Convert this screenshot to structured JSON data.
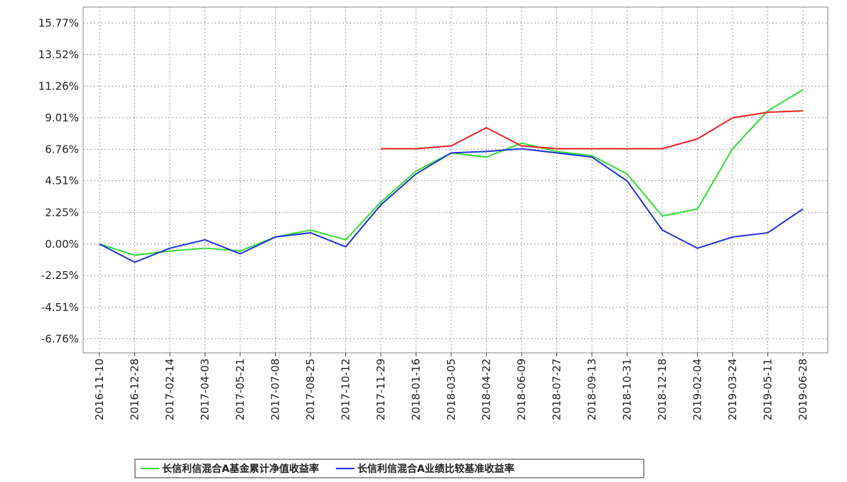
{
  "chart_data": {
    "type": "line",
    "categories": [
      "2016-11-10",
      "2016-12-28",
      "2017-02-14",
      "2017-04-03",
      "2017-05-21",
      "2017-07-08",
      "2017-08-25",
      "2017-10-12",
      "2017-11-29",
      "2018-01-16",
      "2018-03-05",
      "2018-04-22",
      "2018-06-09",
      "2018-07-27",
      "2018-09-13",
      "2018-10-31",
      "2018-12-18",
      "2019-02-04",
      "2019-03-24",
      "2019-05-11",
      "2019-06-28"
    ],
    "series": [
      {
        "name": "长信利信混合A基金累计净值收益率",
        "color": "#33dd33",
        "values": [
          0,
          -0.8,
          -0.5,
          -0.3,
          -0.5,
          0.5,
          1.0,
          0.3,
          3.0,
          5.2,
          6.5,
          6.2,
          7.2,
          6.6,
          6.3,
          5.0,
          2.0,
          2.5,
          6.8,
          9.5,
          11.0
        ]
      },
      {
        "name": "长信利信混合A业绩比较基准收益率",
        "color": "#2233dd",
        "values": [
          0,
          -1.3,
          -0.3,
          0.3,
          -0.7,
          0.5,
          0.8,
          -0.2,
          2.8,
          5.0,
          6.5,
          6.6,
          6.8,
          6.5,
          6.2,
          4.5,
          1.0,
          -0.3,
          0.5,
          0.8,
          2.5
        ]
      },
      {
        "color": "#ee2222",
        "values": [
          null,
          null,
          null,
          null,
          null,
          null,
          null,
          null,
          6.8,
          6.8,
          7.0,
          8.3,
          7.0,
          6.8,
          6.8,
          6.8,
          6.8,
          7.5,
          9.0,
          9.4,
          9.5
        ]
      }
    ],
    "ylim": [
      -7.76,
      16.9
    ],
    "yticks": [
      {
        "value": -6.76,
        "label": "-6.76%"
      },
      {
        "value": -4.51,
        "label": "-4.51%"
      },
      {
        "value": -2.25,
        "label": "-2.25%"
      },
      {
        "value": 0,
        "label": "0.00%"
      },
      {
        "value": 2.25,
        "label": "2.25%"
      },
      {
        "value": 4.51,
        "label": "4.51%"
      },
      {
        "value": 6.76,
        "label": "6.76%"
      },
      {
        "value": 9.01,
        "label": "9.01%"
      },
      {
        "value": 11.26,
        "label": "11.26%"
      },
      {
        "value": 13.52,
        "label": "13.52%"
      },
      {
        "value": 15.77,
        "label": "15.77%"
      }
    ],
    "grid": true
  }
}
